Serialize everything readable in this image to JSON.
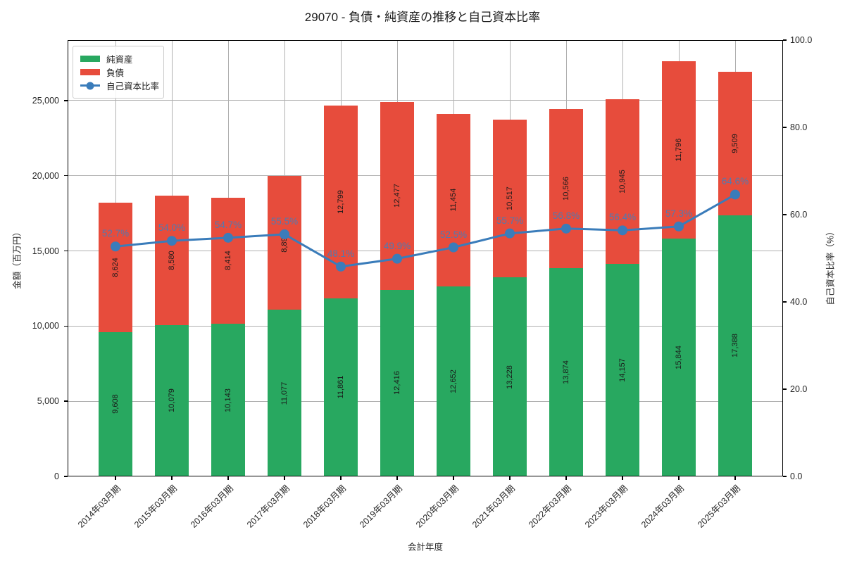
{
  "title": "29070 - 負債・純資産の推移と自己資本比率",
  "axes": {
    "x_title": "会計年度",
    "y_left_title": "金額（百万円）",
    "y_right_title": "自己資本比率（%）",
    "y_left_tick_labels": [
      "0",
      "5,000",
      "10,000",
      "15,000",
      "20,000",
      "25,000"
    ],
    "y_right_tick_labels": [
      "0.0",
      "20.0",
      "40.0",
      "60.0",
      "80.0",
      "100.0"
    ]
  },
  "legend": {
    "items": [
      {
        "label": "純資産",
        "kind": "bar"
      },
      {
        "label": "負債",
        "kind": "bar"
      },
      {
        "label": "自己資本比率",
        "kind": "line"
      }
    ]
  },
  "colors": {
    "net_assets": "#28a860",
    "liabilities": "#e74c3c",
    "ratio_line": "#3a7cba",
    "percent_label": "#3f7fbf",
    "value_label": "#1a1a1a",
    "grid": "#b0b0b0",
    "spine": "#000000",
    "text": "#262626",
    "legend_border": "#cccccc"
  },
  "chart_data": {
    "type": "bar",
    "subtype": "stacked-bars-with-line",
    "title": "29070 - 負債・純資産の推移と自己資本比率",
    "xlabel": "会計年度",
    "ylabel_left": "金額（百万円）",
    "ylabel_right": "自己資本比率（%）",
    "categories": [
      "2014年03月期",
      "2015年03月期",
      "2016年03月期",
      "2017年03月期",
      "2018年03月期",
      "2019年03月期",
      "2020年03月期",
      "2021年03月期",
      "2022年03月期",
      "2023年03月期",
      "2024年03月期",
      "2025年03月期"
    ],
    "series": [
      {
        "name": "純資産",
        "kind": "bar",
        "axis": "left",
        "stack_order": 0,
        "values": [
          9608,
          10079,
          10143,
          11077,
          11861,
          12416,
          12652,
          13228,
          13874,
          14157,
          15844,
          17388
        ],
        "value_labels": [
          "9,608",
          "10,079",
          "10,143",
          "11,077",
          "11,861",
          "12,416",
          "12,652",
          "13,228",
          "13,874",
          "14,157",
          "15,844",
          "17,388"
        ]
      },
      {
        "name": "負債",
        "kind": "bar",
        "axis": "left",
        "stack_order": 1,
        "values": [
          8624,
          8580,
          8414,
          8893,
          12799,
          12477,
          11454,
          10517,
          10566,
          10945,
          11796,
          9509
        ],
        "value_labels": [
          "8,624",
          "8,580",
          "8,414",
          "8,893",
          "12,799",
          "12,477",
          "11,454",
          "10,517",
          "10,566",
          "10,945",
          "11,796",
          "9,509"
        ]
      },
      {
        "name": "自己資本比率",
        "kind": "line",
        "axis": "right",
        "values": [
          52.7,
          54.0,
          54.7,
          55.5,
          48.1,
          49.9,
          52.5,
          55.7,
          56.8,
          56.4,
          57.3,
          64.6
        ],
        "value_labels": [
          "52.7%",
          "54.0%",
          "54.7%",
          "55.5%",
          "48.1%",
          "49.9%",
          "52.5%",
          "55.7%",
          "56.8%",
          "56.4%",
          "57.3%",
          "64.6%"
        ]
      }
    ],
    "ylim_left": [
      0,
      29022
    ],
    "ylim_right": [
      0,
      100
    ],
    "yticks_left": [
      0,
      5000,
      10000,
      15000,
      20000,
      25000
    ],
    "yticks_right": [
      0,
      20,
      40,
      60,
      80,
      100
    ],
    "grid": true,
    "legend_position": "upper left",
    "bar_width_ratio": 0.6
  }
}
